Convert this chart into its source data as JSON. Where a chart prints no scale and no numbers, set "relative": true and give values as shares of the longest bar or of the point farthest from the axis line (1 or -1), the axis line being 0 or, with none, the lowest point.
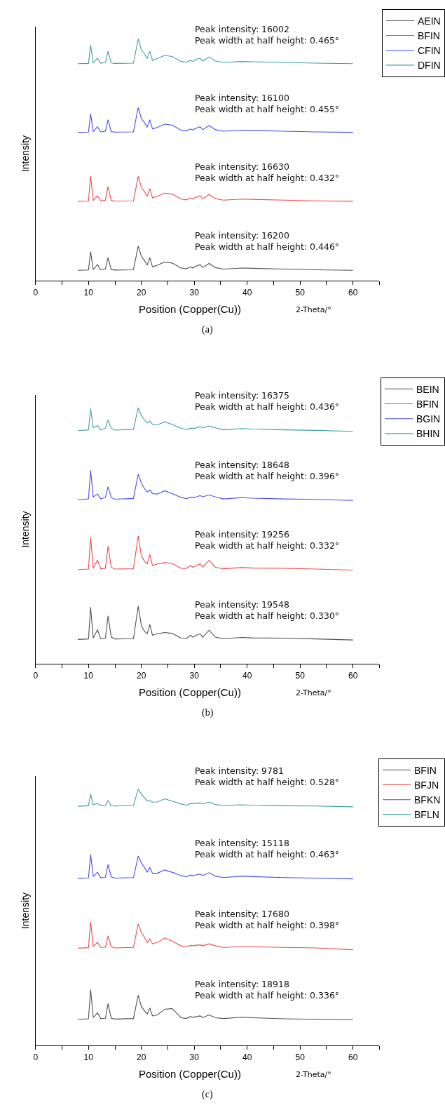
{
  "chart_data": [
    {
      "type": "line",
      "relative": true,
      "xlabel": "Position (Copper(Cu))",
      "ylabel": "Intensity",
      "legend": "top right",
      "xlim": [
        0,
        65
      ],
      "xticks": [
        0,
        {
          "value": 5,
          "label": null
        },
        10,
        {
          "value": 15,
          "label": null
        },
        20,
        {
          "value": 25,
          "label": null
        },
        30,
        {
          "value": 35,
          "label": null
        },
        40,
        {
          "value": 45,
          "label": null
        },
        50,
        {
          "value": 55,
          "label": null
        },
        60,
        {
          "value": 65,
          "label": null
        }
      ],
      "x": [
        8,
        10.0,
        10.4,
        10.9,
        11.7,
        12.3,
        13.2,
        13.7,
        14.3,
        15,
        18.5,
        19.4,
        20.0,
        20.6,
        21.1,
        21.6,
        22.1,
        23,
        24.4,
        25.8,
        27.5,
        28.5,
        29.3,
        29.7,
        30.1,
        31.1,
        31.6,
        32.8,
        34,
        35.5,
        39,
        41,
        47,
        53,
        60
      ],
      "series": [
        {
          "name": "AEIN",
          "color": "#505050",
          "values": [
            0.043,
            0.044,
            0.12,
            0.046,
            0.066,
            0.045,
            0.048,
            0.095,
            0.046,
            0.044,
            0.045,
            0.143,
            0.1,
            0.083,
            0.064,
            0.095,
            0.057,
            0.064,
            0.077,
            0.073,
            0.052,
            0.049,
            0.057,
            0.052,
            0.058,
            0.066,
            0.054,
            0.071,
            0.054,
            0.048,
            0.052,
            0.051,
            0.048,
            0.045,
            0.043
          ]
        },
        {
          "name": "BFIN",
          "color": "#ee4b4b",
          "values": [
            0.328,
            0.329,
            0.433,
            0.331,
            0.351,
            0.33,
            0.333,
            0.39,
            0.331,
            0.329,
            0.33,
            0.431,
            0.385,
            0.368,
            0.349,
            0.38,
            0.342,
            0.349,
            0.362,
            0.358,
            0.337,
            0.334,
            0.342,
            0.337,
            0.343,
            0.351,
            0.339,
            0.356,
            0.339,
            0.333,
            0.337,
            0.336,
            0.333,
            0.33,
            0.328
          ]
        },
        {
          "name": "CFIN",
          "color": "#4b4bee",
          "values": [
            0.613,
            0.614,
            0.69,
            0.616,
            0.636,
            0.615,
            0.618,
            0.665,
            0.616,
            0.614,
            0.615,
            0.716,
            0.67,
            0.653,
            0.634,
            0.665,
            0.627,
            0.634,
            0.647,
            0.643,
            0.622,
            0.619,
            0.627,
            0.622,
            0.628,
            0.636,
            0.624,
            0.641,
            0.624,
            0.618,
            0.622,
            0.621,
            0.618,
            0.615,
            0.613
          ]
        },
        {
          "name": "DFIN",
          "color": "#3f9f9f",
          "values": [
            0.897,
            0.898,
            0.974,
            0.9,
            0.92,
            0.899,
            0.902,
            0.949,
            0.9,
            0.898,
            0.899,
            1.0,
            0.954,
            0.937,
            0.918,
            0.949,
            0.911,
            0.918,
            0.931,
            0.927,
            0.906,
            0.903,
            0.911,
            0.906,
            0.912,
            0.92,
            0.908,
            0.925,
            0.908,
            0.902,
            0.906,
            0.905,
            0.902,
            0.899,
            0.897
          ]
        }
      ],
      "annotations": [
        "Peak intensity: 16002\nPeak width at half height: 0.465°",
        "Peak intensity: 16100\nPeak width at half height: 0.455°",
        "Peak intensity: 16630\nPeak width at half height: 0.432°",
        "Peak intensity: 16200\nPeak width at half height: 0.446°",
        "2-Theta/°",
        "(a)"
      ]
    },
    {
      "type": "line",
      "relative": true,
      "xlabel": "Position (Copper(Cu))",
      "ylabel": "Intensity",
      "legend": "top right",
      "xlim": [
        0,
        65
      ],
      "xticks": [
        0,
        {
          "value": 5,
          "label": null
        },
        10,
        {
          "value": 15,
          "label": null
        },
        20,
        {
          "value": 25,
          "label": null
        },
        30,
        {
          "value": 35,
          "label": null
        },
        40,
        {
          "value": 45,
          "label": null
        },
        50,
        {
          "value": 55,
          "label": null
        },
        60,
        {
          "value": 65,
          "label": null
        }
      ],
      "x": [
        8,
        10.0,
        10.4,
        10.9,
        11.7,
        12.3,
        13.2,
        13.7,
        14.3,
        15,
        18.5,
        19.4,
        20.0,
        20.6,
        21.1,
        21.6,
        22.1,
        23,
        24.4,
        25.8,
        27.5,
        28.5,
        29.3,
        29.7,
        30.1,
        31.1,
        31.6,
        32.8,
        34,
        35.5,
        39,
        41,
        47,
        53,
        60
      ],
      "series": [
        {
          "name": "BEIN",
          "color": "#505050",
          "values": [
            0.095,
            0.097,
            0.221,
            0.1,
            0.133,
            0.098,
            0.1,
            0.187,
            0.104,
            0.097,
            0.098,
            0.225,
            0.149,
            0.127,
            0.117,
            0.154,
            0.111,
            0.117,
            0.122,
            0.119,
            0.1,
            0.099,
            0.111,
            0.104,
            0.108,
            0.117,
            0.104,
            0.131,
            0.104,
            0.098,
            0.103,
            0.101,
            0.1,
            0.097,
            0.093
          ]
        },
        {
          "name": "BFIN",
          "color": "#ee4b4b",
          "values": [
            0.368,
            0.37,
            0.494,
            0.373,
            0.406,
            0.371,
            0.373,
            0.46,
            0.377,
            0.37,
            0.371,
            0.5,
            0.422,
            0.4,
            0.39,
            0.427,
            0.384,
            0.39,
            0.395,
            0.392,
            0.373,
            0.372,
            0.384,
            0.377,
            0.381,
            0.39,
            0.377,
            0.404,
            0.377,
            0.371,
            0.376,
            0.374,
            0.373,
            0.37,
            0.366
          ]
        },
        {
          "name": "BGIN",
          "color": "#4b4bee",
          "values": [
            0.641,
            0.644,
            0.756,
            0.652,
            0.663,
            0.644,
            0.65,
            0.692,
            0.65,
            0.643,
            0.646,
            0.741,
            0.706,
            0.684,
            0.671,
            0.679,
            0.665,
            0.663,
            0.676,
            0.665,
            0.65,
            0.645,
            0.65,
            0.65,
            0.65,
            0.657,
            0.652,
            0.66,
            0.652,
            0.644,
            0.649,
            0.647,
            0.644,
            0.642,
            0.638
          ]
        },
        {
          "name": "BHIN",
          "color": "#3f9f9f",
          "values": [
            0.911,
            0.914,
            0.996,
            0.922,
            0.93,
            0.914,
            0.92,
            0.953,
            0.92,
            0.913,
            0.916,
            1.0,
            0.97,
            0.952,
            0.941,
            0.948,
            0.935,
            0.933,
            0.946,
            0.935,
            0.92,
            0.915,
            0.92,
            0.92,
            0.92,
            0.927,
            0.922,
            0.929,
            0.922,
            0.914,
            0.919,
            0.917,
            0.914,
            0.912,
            0.908
          ]
        }
      ],
      "annotations": [
        "Peak intensity: 16375\nPeak width at half height: 0.436°",
        "Peak intensity: 18648\nPeak width at half height: 0.396°",
        "Peak intensity: 19256\nPeak width at half height: 0.332°",
        "Peak intensity: 19548\nPeak width at half height: 0.330°",
        "2-Theta/°",
        "(b)"
      ]
    },
    {
      "type": "line",
      "relative": true,
      "xlabel": "Position (Copper(Cu))",
      "ylabel": "Intensity",
      "legend": "top right",
      "xlim": [
        0,
        65
      ],
      "xticks": [
        0,
        {
          "value": 5,
          "label": null
        },
        10,
        {
          "value": 15,
          "label": null
        },
        20,
        {
          "value": 25,
          "label": null
        },
        30,
        {
          "value": 35,
          "label": null
        },
        40,
        {
          "value": 45,
          "label": null
        },
        50,
        {
          "value": 55,
          "label": null
        },
        60,
        {
          "value": 65,
          "label": null
        }
      ],
      "x": [
        8,
        10.0,
        10.4,
        10.9,
        11.7,
        12.3,
        13.2,
        13.7,
        14.3,
        15,
        18.5,
        19.4,
        20.0,
        20.6,
        21.1,
        21.6,
        22.1,
        23,
        24.4,
        25.8,
        27.5,
        28.5,
        29.3,
        29.7,
        30.1,
        31.1,
        31.6,
        32.8,
        34,
        35.5,
        39,
        41,
        47,
        53,
        60
      ],
      "series": [
        {
          "name": "BFIN",
          "color": "#505050",
          "values": [
            0.102,
            0.104,
            0.218,
            0.108,
            0.127,
            0.105,
            0.106,
            0.163,
            0.106,
            0.103,
            0.105,
            0.196,
            0.152,
            0.135,
            0.122,
            0.146,
            0.115,
            0.119,
            0.141,
            0.144,
            0.108,
            0.105,
            0.113,
            0.109,
            0.111,
            0.115,
            0.109,
            0.119,
            0.108,
            0.105,
            0.11,
            0.108,
            0.104,
            0.102,
            0.1
          ]
        },
        {
          "name": "BFJN",
          "color": "#ee4b4b",
          "values": [
            0.379,
            0.381,
            0.482,
            0.386,
            0.402,
            0.382,
            0.383,
            0.427,
            0.385,
            0.38,
            0.382,
            0.474,
            0.44,
            0.421,
            0.401,
            0.416,
            0.396,
            0.401,
            0.419,
            0.407,
            0.388,
            0.385,
            0.39,
            0.388,
            0.39,
            0.392,
            0.388,
            0.396,
            0.388,
            0.382,
            0.385,
            0.385,
            0.382,
            0.38,
            0.373
          ]
        },
        {
          "name": "BFKN",
          "color": "#4b4bee",
          "values": [
            0.651,
            0.653,
            0.744,
            0.658,
            0.675,
            0.654,
            0.655,
            0.705,
            0.657,
            0.652,
            0.654,
            0.738,
            0.712,
            0.693,
            0.675,
            0.694,
            0.671,
            0.671,
            0.684,
            0.675,
            0.662,
            0.657,
            0.664,
            0.662,
            0.663,
            0.668,
            0.662,
            0.673,
            0.66,
            0.654,
            0.66,
            0.658,
            0.654,
            0.652,
            0.649
          ]
        },
        {
          "name": "BFLN",
          "color": "#3f9f9f",
          "values": [
            0.932,
            0.934,
            0.98,
            0.938,
            0.944,
            0.934,
            0.935,
            0.955,
            0.935,
            0.933,
            0.935,
            1.0,
            0.979,
            0.965,
            0.952,
            0.955,
            0.948,
            0.949,
            0.961,
            0.952,
            0.941,
            0.936,
            0.943,
            0.942,
            0.943,
            0.945,
            0.942,
            0.948,
            0.939,
            0.935,
            0.938,
            0.936,
            0.934,
            0.933,
            0.93
          ]
        }
      ],
      "annotations": [
        "Peak intensity: 9781\nPeak width at half height: 0.528°",
        "Peak intensity: 15118\nPeak width at half height: 0.463°",
        "Peak intensity: 17680\nPeak width at half height: 0.398°",
        "Peak intensity: 18918\nPeak width at half height: 0.336°",
        "2-Theta/°",
        "(c)"
      ]
    }
  ]
}
